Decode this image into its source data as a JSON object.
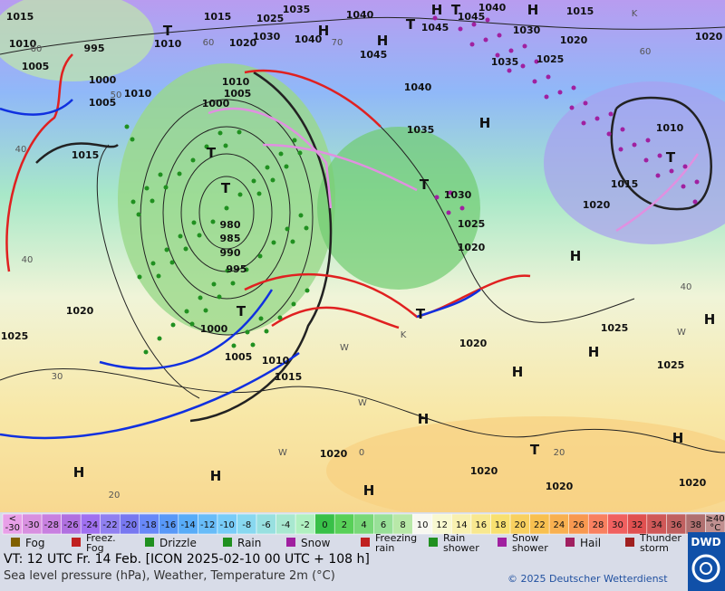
{
  "map": {
    "labels": [
      "1015",
      "1015",
      "1025",
      "1035",
      "1040",
      "H",
      "T",
      "1045",
      "1040",
      "H",
      "1015",
      "1020",
      "1010",
      "1010",
      "T",
      "1020",
      "1030",
      "1040",
      "H",
      "H",
      "1045",
      "T",
      "1045",
      "1030",
      "1020",
      "995",
      "1005",
      "1000",
      "1010",
      "1005",
      "1035",
      "1025",
      "1040",
      "1010",
      "1005",
      "1000",
      "H",
      "1035",
      "1010",
      "T",
      "1015",
      "T",
      "1015",
      "T",
      "1030",
      "1020",
      "T",
      "980",
      "985",
      "990",
      "995",
      "1025",
      "1020",
      "H",
      "1020",
      "T",
      "T",
      "1000",
      "H",
      "1025",
      "1025",
      "1020",
      "H",
      "1005",
      "1010",
      "1015",
      "1025",
      "H",
      "H",
      "H",
      "T",
      "1020",
      "1020",
      "H",
      "H",
      "H",
      "1020",
      "1020"
    ],
    "graticule": [
      "60",
      "70",
      "60",
      "60",
      "50",
      "40",
      "40",
      "40",
      "30",
      "20",
      "20",
      "0",
      "W",
      "W",
      "W",
      "K",
      "K",
      "W"
    ]
  },
  "legend": {
    "temperature_scale": [
      {
        "text": [
          "<",
          "-30"
        ],
        "color": "#e8a0e8"
      },
      {
        "text": "-30",
        "color": "#d890e0"
      },
      {
        "text": "-28",
        "color": "#c880e0"
      },
      {
        "text": "-26",
        "color": "#b070e0"
      },
      {
        "text": "-24",
        "color": "#a070f0"
      },
      {
        "text": "-22",
        "color": "#9080f0"
      },
      {
        "text": "-20",
        "color": "#7878f0"
      },
      {
        "text": "-18",
        "color": "#6888f8"
      },
      {
        "text": "-16",
        "color": "#5898f8"
      },
      {
        "text": "-14",
        "color": "#58acf8"
      },
      {
        "text": "-12",
        "color": "#68bcf8"
      },
      {
        "text": "-10",
        "color": "#78ccf8"
      },
      {
        "text": "-8",
        "color": "#88d8f0"
      },
      {
        "text": "-6",
        "color": "#98e0e0"
      },
      {
        "text": "-4",
        "color": "#a8e8d0"
      },
      {
        "text": "-2",
        "color": "#b0f0c0"
      },
      {
        "text": "0",
        "color": "#38c048"
      },
      {
        "text": "2",
        "color": "#58d058"
      },
      {
        "text": "4",
        "color": "#78d878"
      },
      {
        "text": "6",
        "color": "#98e098"
      },
      {
        "text": "8",
        "color": "#b8e8a8"
      },
      {
        "text": "10",
        "color": "#f8f8f0"
      },
      {
        "text": "12",
        "color": "#f8f8d0"
      },
      {
        "text": "14",
        "color": "#f8f0b0"
      },
      {
        "text": "16",
        "color": "#f8e890"
      },
      {
        "text": "18",
        "color": "#f8e070"
      },
      {
        "text": "20",
        "color": "#f8d060"
      },
      {
        "text": "22",
        "color": "#f8c050"
      },
      {
        "text": "24",
        "color": "#f8b050"
      },
      {
        "text": "26",
        "color": "#f89850"
      },
      {
        "text": "28",
        "color": "#f88060"
      },
      {
        "text": "30",
        "color": "#f06060"
      },
      {
        "text": "32",
        "color": "#e05050"
      },
      {
        "text": "34",
        "color": "#d05858"
      },
      {
        "text": "36",
        "color": "#c06060"
      },
      {
        "text": "38",
        "color": "#b07070"
      },
      {
        "text": [
          "≥40",
          "°C"
        ],
        "color": "#c09090"
      }
    ],
    "weather": [
      {
        "text": "Fog"
      },
      {
        "text": [
          "Freez.",
          "Fog"
        ]
      },
      {
        "text": "Drizzle"
      },
      {
        "text": "Rain"
      },
      {
        "text": "Snow"
      },
      {
        "text": [
          "Freezing",
          "rain"
        ]
      },
      {
        "text": [
          "Rain",
          "shower"
        ]
      },
      {
        "text": [
          "Snow",
          "shower"
        ]
      },
      {
        "text": "Hail"
      },
      {
        "text": [
          "Thunder",
          "storm"
        ]
      }
    ]
  },
  "footer": {
    "valid_time": "VT: 12 UTC Fr.  14 Feb. [ICON 2025-02-10  00 UTC + 108 h]",
    "description": "Sea level pressure (hPa), Weather, Temperature 2m (°C)",
    "copyright": "© 2025 Deutscher Wetterdienst",
    "logo": "DWD"
  }
}
